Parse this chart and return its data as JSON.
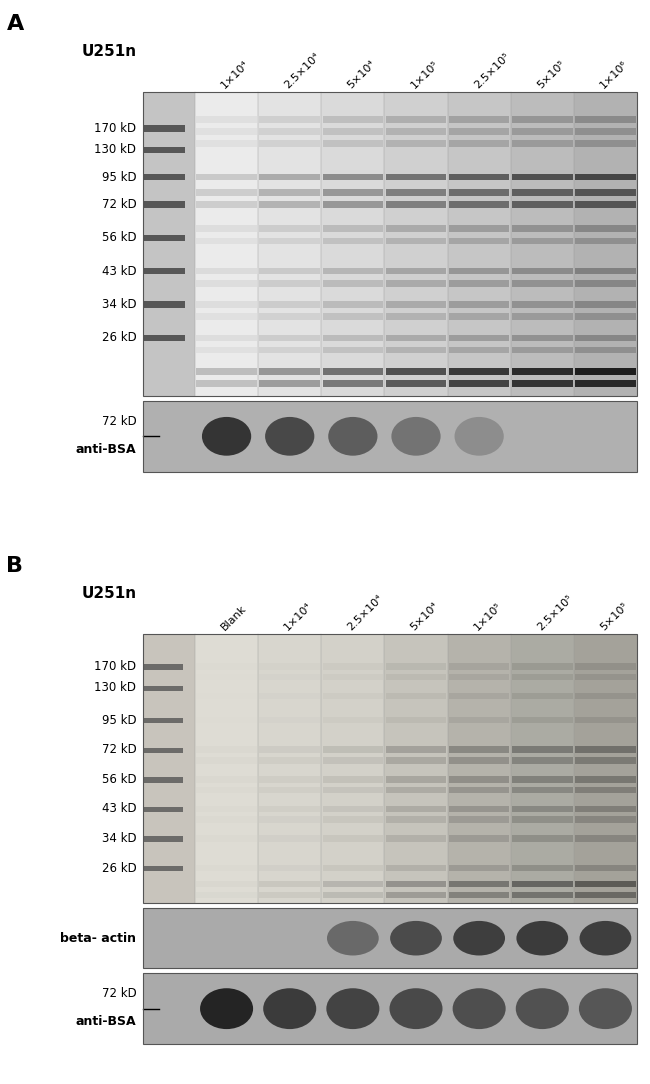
{
  "panel_A": {
    "title": "A",
    "cell_line": "U251n",
    "lanes_label": [
      "1×10⁴",
      "2.5×10⁴",
      "5×10⁴",
      "1×10⁵",
      "2.5×10⁵",
      "5×10⁵",
      "1×10⁶"
    ],
    "mw_markers": [
      "170 kD",
      "130 kD",
      "95 kD",
      "72 kD",
      "56 kD",
      "43 kD",
      "34 kD",
      "26 kD"
    ],
    "wb_label": "anti-BSA",
    "wb_mw": "72 kD"
  },
  "panel_B": {
    "title": "B",
    "cell_line": "U251n",
    "lanes_label": [
      "Blank",
      "1×10⁴",
      "2.5×10⁴",
      "5×10⁴",
      "1×10⁵",
      "2.5×10⁵",
      "5×10⁵"
    ],
    "mw_markers": [
      "170 kD",
      "130 kD",
      "95 kD",
      "72 kD",
      "56 kD",
      "43 kD",
      "34 kD",
      "26 kD"
    ],
    "wb1_label": "beta- actin",
    "wb2_label": "anti-BSA",
    "wb2_mw": "72 kD"
  }
}
